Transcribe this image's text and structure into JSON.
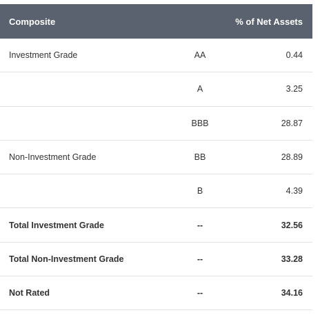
{
  "table": {
    "headers": {
      "composite": "Composite",
      "net_assets": "% of Net Assets"
    },
    "rows": [
      {
        "category": "Investment Grade",
        "rating": "AA",
        "value": "0.44"
      },
      {
        "category": "",
        "rating": "A",
        "value": "3.25"
      },
      {
        "category": "",
        "rating": "BBB",
        "value": "28.87"
      },
      {
        "category": "Non-Investment Grade",
        "rating": "BB",
        "value": "28.89"
      },
      {
        "category": "",
        "rating": "B",
        "value": "4.39"
      },
      {
        "category": "Total Investment Grade",
        "rating": "--",
        "value": "32.56"
      },
      {
        "category": "Total Non-Investment Grade",
        "rating": "--",
        "value": "33.28"
      },
      {
        "category": "Not Rated",
        "rating": "--",
        "value": "34.16"
      }
    ]
  }
}
